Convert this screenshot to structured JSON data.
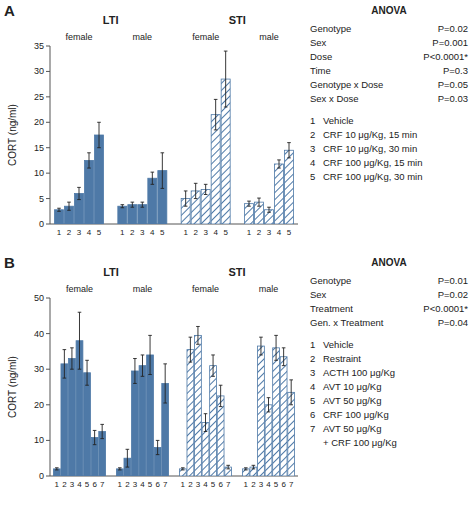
{
  "chart_data": [
    {
      "type": "bar",
      "title": "A",
      "y_label": "CORT (ng/ml)",
      "ylim": [
        0,
        35
      ],
      "yticks": [
        0,
        5,
        10,
        15,
        20,
        25,
        30,
        35
      ],
      "categories": [
        "1",
        "2",
        "3",
        "4",
        "5"
      ],
      "sections": [
        {
          "name": "LTI",
          "series": [
            {
              "name": "female",
              "values": [
                2.8,
                3.5,
                6.0,
                12.5,
                17.5
              ],
              "errors": [
                0.3,
                0.8,
                1.2,
                1.5,
                2.5
              ]
            },
            {
              "name": "male",
              "values": [
                3.5,
                3.8,
                3.8,
                9.0,
                10.5
              ],
              "errors": [
                0.3,
                0.5,
                0.5,
                1.2,
                3.5
              ]
            }
          ]
        },
        {
          "name": "STI",
          "series": [
            {
              "name": "female",
              "values": [
                5.0,
                6.5,
                6.8,
                21.5,
                28.5
              ],
              "errors": [
                1.5,
                1.5,
                1.0,
                3.0,
                5.5
              ]
            },
            {
              "name": "male",
              "values": [
                4.0,
                4.3,
                2.8,
                11.8,
                14.5
              ],
              "errors": [
                0.5,
                0.8,
                0.5,
                0.8,
                1.5
              ]
            }
          ]
        }
      ],
      "anova": {
        "title": "ANOVA",
        "rows": [
          {
            "label": "Genotype",
            "value": "P=0.02"
          },
          {
            "label": "Sex",
            "value": "P=0.001"
          },
          {
            "label": "Dose",
            "value": "P<0.0001*"
          },
          {
            "label": "Time",
            "value": "P=0.3"
          },
          {
            "label": "Genotype x Dose",
            "value": "P=0.05"
          },
          {
            "label": "Sex x Dose",
            "value": "P=0.03"
          }
        ]
      },
      "key": [
        {
          "number": "1",
          "label": "Vehicle"
        },
        {
          "number": "2",
          "label": "CRF 10 μg/Kg, 15 min"
        },
        {
          "number": "3",
          "label": "CRF 10 μg/Kg, 30 min"
        },
        {
          "number": "4",
          "label": "CRF 100 μg/Kg, 15 min"
        },
        {
          "number": "5",
          "label": "CRF 100 μg/Kg, 30 min"
        }
      ]
    },
    {
      "type": "bar",
      "title": "B",
      "y_label": "CORT (ng/ml)",
      "ylim": [
        0,
        50
      ],
      "yticks": [
        0,
        10,
        20,
        30,
        40,
        50
      ],
      "categories": [
        "1",
        "2",
        "3",
        "4",
        "5",
        "6",
        "7"
      ],
      "sections": [
        {
          "name": "LTI",
          "series": [
            {
              "name": "female",
              "values": [
                2.0,
                31.5,
                33.0,
                38.0,
                29.0,
                10.8,
                12.5
              ],
              "errors": [
                0.3,
                4.0,
                3.0,
                8.0,
                3.5,
                2.0,
                2.0
              ]
            },
            {
              "name": "male",
              "values": [
                2.0,
                5.0,
                29.5,
                31.0,
                34.0,
                8.0,
                26.0
              ],
              "errors": [
                0.3,
                2.5,
                3.5,
                3.0,
                5.5,
                2.0,
                5.5
              ]
            }
          ]
        },
        {
          "name": "STI",
          "series": [
            {
              "name": "female",
              "values": [
                2.0,
                35.5,
                39.5,
                15.0,
                31.0,
                22.5,
                2.5
              ],
              "errors": [
                0.3,
                3.5,
                2.5,
                2.5,
                3.0,
                3.0,
                0.5
              ]
            },
            {
              "name": "male",
              "values": [
                2.0,
                2.5,
                36.5,
                20.0,
                36.0,
                33.5,
                23.5
              ],
              "errors": [
                0.3,
                0.5,
                2.5,
                2.0,
                3.5,
                2.5,
                3.5
              ]
            }
          ]
        }
      ],
      "anova": {
        "title": "ANOVA",
        "rows": [
          {
            "label": "Genotype",
            "value": "P=0.01"
          },
          {
            "label": "Sex",
            "value": "P=0.02"
          },
          {
            "label": "Treatment",
            "value": "P<0.0001*"
          },
          {
            "label": "Gen. x Treatment",
            "value": "P=0.04"
          }
        ]
      },
      "key": [
        {
          "number": "1",
          "label": "Vehicle"
        },
        {
          "number": "2",
          "label": "Restraint"
        },
        {
          "number": "3",
          "label": "ACTH 100 μg/Kg"
        },
        {
          "number": "4",
          "label": "AVT 10 μg/Kg"
        },
        {
          "number": "5",
          "label": "AVT 50 μg/Kg"
        },
        {
          "number": "6",
          "label": "CRF 100 μg/Kg"
        },
        {
          "number": "7",
          "label": "AVT 50 μg/Kg\n  + CRF 100 μg/Kg"
        }
      ]
    }
  ]
}
